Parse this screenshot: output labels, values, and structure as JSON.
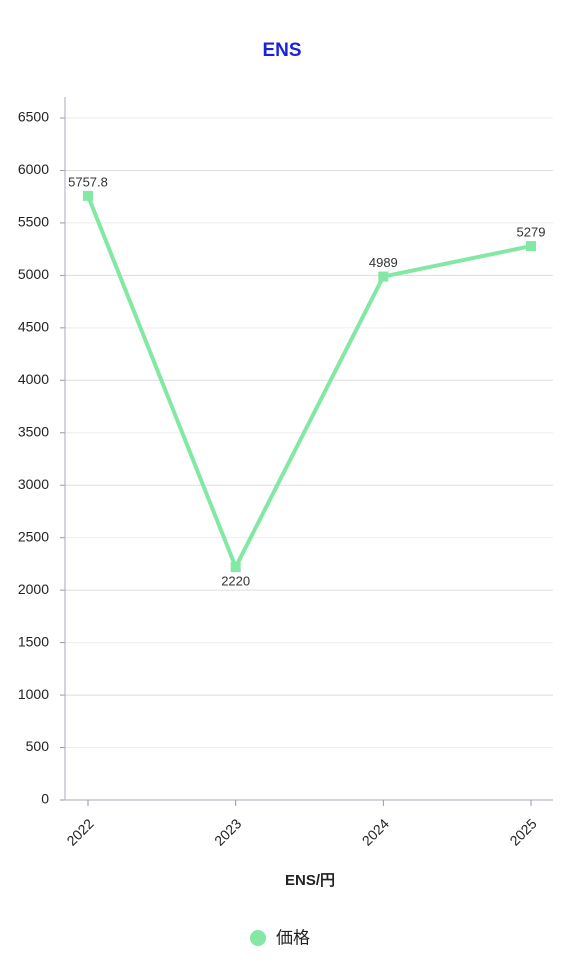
{
  "chart_data": {
    "type": "line",
    "title": "ENS",
    "x_label": "ENS/円",
    "categories": [
      "2022",
      "2023",
      "2024",
      "2025"
    ],
    "series": [
      {
        "name": "価格",
        "color": "#82e8a4",
        "values": [
          5757.8,
          2220,
          4989,
          5279
        ]
      }
    ],
    "ylim": [
      0,
      6700
    ],
    "yticks": [
      0,
      500,
      1000,
      1500,
      2000,
      2500,
      3000,
      3500,
      4000,
      4500,
      5000,
      5500,
      6000,
      6500
    ],
    "grid": true,
    "legend": "bottom"
  }
}
